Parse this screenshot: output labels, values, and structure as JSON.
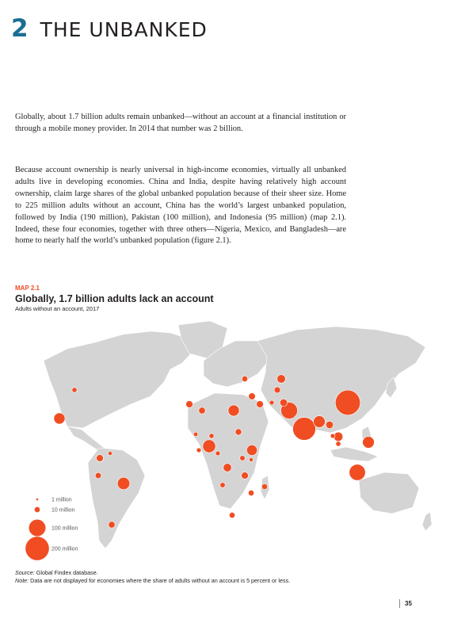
{
  "chapter": {
    "number": "2",
    "title": "THE UNBANKED"
  },
  "paragraphs": [
    "Globally, about 1.7 billion adults remain unbanked—without an account at a financial institution or through a mobile money provider. In 2014 that number was 2 billion.",
    "Because account ownership is nearly universal in high-income economies, virtually all unbanked adults live in developing economies. China and India, despite having relatively high account ownership, claim large shares of the global unbanked population because of their sheer size. Home to 225 million adults without an account, China has the world’s largest unbanked population, followed by India (190 million), Pakistan (100 million), and Indonesia (95 million) (map 2.1). Indeed, these four economies, together with three others—Nigeria, Mexico, and Bangladesh—are home to nearly half the world’s unbanked population (figure 2.1)."
  ],
  "map": {
    "label": "MAP 2.1",
    "title": "Globally, 1.7 billion adults lack an account",
    "subtitle": "Adults without an account, 2017",
    "land_color": "#d4d4d4",
    "bubble_color": "#f04d23",
    "legend": [
      {
        "label": "1 million",
        "millions": 1
      },
      {
        "label": "10 million",
        "millions": 10
      },
      {
        "label": "100 million",
        "millions": 100
      },
      {
        "label": "200 million",
        "millions": 200
      }
    ],
    "economies": [
      {
        "name": "China",
        "millions": 225
      },
      {
        "name": "India",
        "millions": 190
      },
      {
        "name": "Pakistan",
        "millions": 100
      },
      {
        "name": "Indonesia",
        "millions": 95
      },
      {
        "name": "Nigeria",
        "millions": 60
      },
      {
        "name": "Mexico",
        "millions": 45
      },
      {
        "name": "Bangladesh",
        "millions": 50
      },
      {
        "name": "Brazil",
        "millions": 55
      },
      {
        "name": "Philippines",
        "millions": 50
      },
      {
        "name": "Egypt",
        "millions": 45
      },
      {
        "name": "Vietnam",
        "millions": 30
      },
      {
        "name": "Ethiopia",
        "millions": 40
      },
      {
        "name": "Iran",
        "millions": 8
      },
      {
        "name": "Turkey",
        "millions": 17
      },
      {
        "name": "Russia",
        "millions": 26
      },
      {
        "name": "United States",
        "millions": 9
      },
      {
        "name": "Colombia",
        "millions": 18
      },
      {
        "name": "Peru",
        "millions": 13
      },
      {
        "name": "Argentina",
        "millions": 16
      },
      {
        "name": "South Africa",
        "millions": 12
      },
      {
        "name": "Morocco",
        "millions": 18
      },
      {
        "name": "Algeria",
        "millions": 16
      },
      {
        "name": "Sudan",
        "millions": 15
      },
      {
        "name": "Congo, Dem. Rep.",
        "millions": 25
      },
      {
        "name": "Tanzania",
        "millions": 18
      },
      {
        "name": "Kenya",
        "millions": 6
      },
      {
        "name": "Uganda",
        "millions": 10
      },
      {
        "name": "Myanmar",
        "millions": 20
      },
      {
        "name": "Thailand",
        "millions": 8
      },
      {
        "name": "Cambodia",
        "millions": 9
      },
      {
        "name": "Afghanistan",
        "millions": 20
      },
      {
        "name": "Iraq",
        "millions": 18
      },
      {
        "name": "Uzbekistan",
        "millions": 14
      },
      {
        "name": "Ukraine",
        "millions": 12
      },
      {
        "name": "Mozambique",
        "millions": 12
      },
      {
        "name": "Madagascar",
        "millions": 12
      },
      {
        "name": "Venezuela",
        "millions": 6
      },
      {
        "name": "Ghana",
        "millions": 8
      },
      {
        "name": "Mali",
        "millions": 7
      },
      {
        "name": "Niger",
        "millions": 9
      },
      {
        "name": "Angola",
        "millions": 10
      },
      {
        "name": "Cameroon",
        "millions": 8
      }
    ]
  },
  "source": {
    "label": "Source:",
    "text": " Global Findex database."
  },
  "note": {
    "label": "Note:",
    "text": " Data are not displayed for economies where the share of adults without an account is 5 percent or less."
  },
  "page_number": "35"
}
